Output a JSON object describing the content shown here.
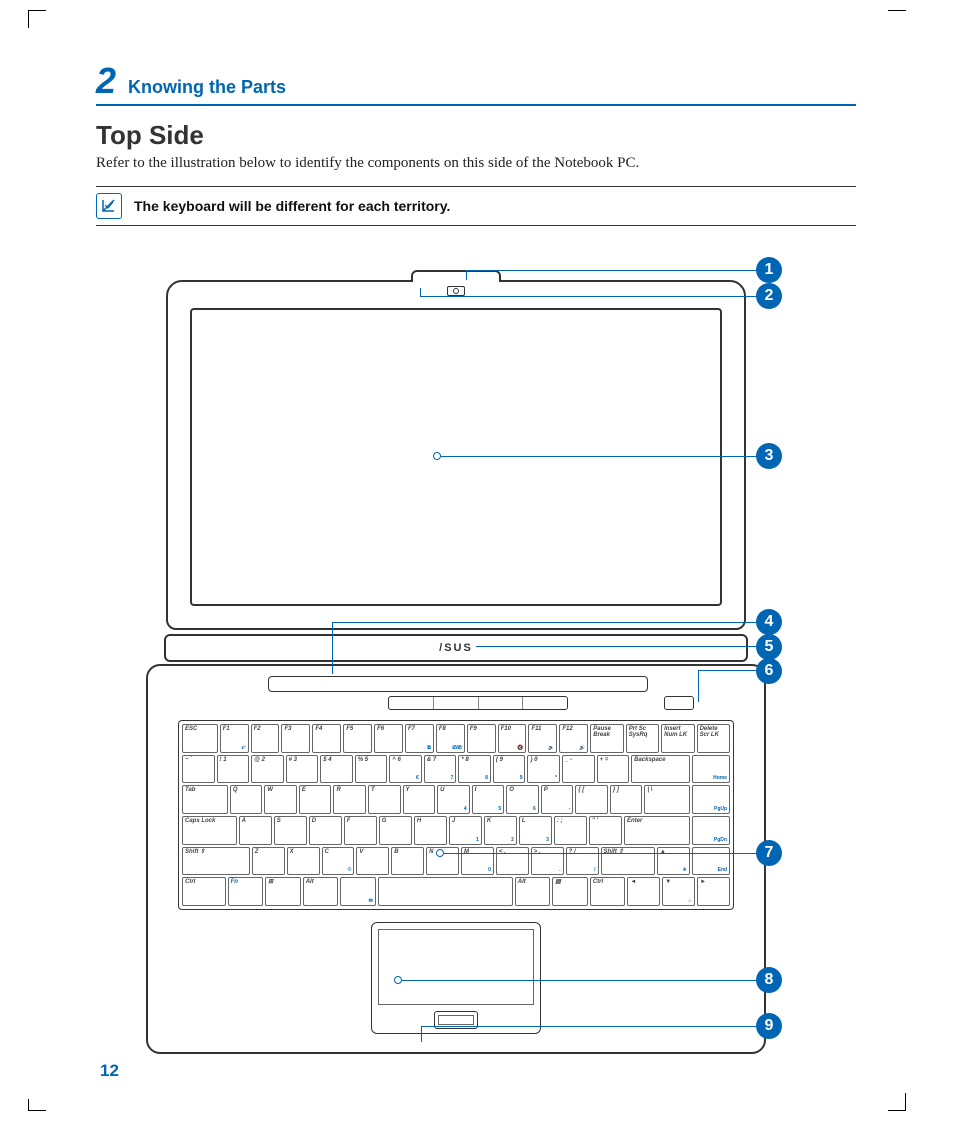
{
  "colors": {
    "accent": "#0066b3",
    "text": "#222222",
    "line": "#333333"
  },
  "section": {
    "number": "2",
    "title": "Knowing the Parts"
  },
  "heading": "Top Side",
  "intro": "Refer to the illustration below to identify the components on this side of the Notebook PC.",
  "note": "The keyboard will be different for each territory.",
  "logo": "/SUS",
  "page_number": "12",
  "callouts": [
    "1",
    "2",
    "3",
    "4",
    "5",
    "6",
    "7",
    "8",
    "9"
  ],
  "keyboard": {
    "row0": [
      {
        "t": "ESC",
        "w": 1.3
      },
      {
        "t": "F1",
        "s": "z²",
        "w": 1
      },
      {
        "t": "F2",
        "s": "",
        "w": 1
      },
      {
        "t": "F3",
        "s": "",
        "w": 1
      },
      {
        "t": "F4",
        "s": "",
        "w": 1
      },
      {
        "t": "F5",
        "s": "",
        "w": 1
      },
      {
        "t": "F6",
        "s": "",
        "w": 1
      },
      {
        "t": "F7",
        "s": "⧉",
        "w": 1
      },
      {
        "t": "F8",
        "s": "⎚/⎚",
        "w": 1
      },
      {
        "t": "F9",
        "s": "",
        "w": 1
      },
      {
        "t": "F10",
        "s": "🔇",
        "w": 1
      },
      {
        "t": "F11",
        "s": "🔉",
        "w": 1
      },
      {
        "t": "F12",
        "s": "🔊",
        "w": 1
      },
      {
        "t": "Pause\nBreak",
        "w": 1.2
      },
      {
        "t": "Prt Sc\nSysRq",
        "w": 1.2
      },
      {
        "t": "Insert\nNum LK",
        "s": "",
        "w": 1.2
      },
      {
        "t": "Delete\nScr LK",
        "s": "",
        "w": 1.2
      }
    ],
    "row1": [
      {
        "t": "~\n`",
        "s": "",
        "w": 1
      },
      {
        "t": "!\n1",
        "s": "",
        "w": 1
      },
      {
        "t": "@\n2",
        "s": "",
        "w": 1
      },
      {
        "t": "#\n3",
        "s": "",
        "w": 1
      },
      {
        "t": "$\n4",
        "s": "",
        "w": 1
      },
      {
        "t": "%\n5",
        "s": "",
        "w": 1
      },
      {
        "t": "^\n6",
        "s": "€",
        "w": 1
      },
      {
        "t": "&\n7",
        "s": "7",
        "w": 1
      },
      {
        "t": "*\n8",
        "s": "8",
        "w": 1
      },
      {
        "t": "(\n9",
        "s": "9",
        "w": 1
      },
      {
        "t": ")\n0",
        "s": "*",
        "w": 1
      },
      {
        "t": "_\n-",
        "s": "",
        "w": 1
      },
      {
        "t": "+\n=",
        "s": "",
        "w": 1
      },
      {
        "t": "Backspace",
        "s": "",
        "w": 2
      },
      {
        "t": "",
        "s": "Home",
        "w": 1.2
      }
    ],
    "row2": [
      {
        "t": "Tab",
        "s": "",
        "w": 1.5
      },
      {
        "t": "Q",
        "w": 1
      },
      {
        "t": "W",
        "w": 1
      },
      {
        "t": "E",
        "w": 1
      },
      {
        "t": "R",
        "w": 1
      },
      {
        "t": "T",
        "w": 1
      },
      {
        "t": "Y",
        "w": 1
      },
      {
        "t": "U",
        "s": "4",
        "w": 1
      },
      {
        "t": "I",
        "s": "5",
        "w": 1
      },
      {
        "t": "O",
        "s": "6",
        "w": 1
      },
      {
        "t": "P",
        "s": "-",
        "w": 1
      },
      {
        "t": "{\n[",
        "w": 1
      },
      {
        "t": "}\n]",
        "w": 1
      },
      {
        "t": "|\n\\",
        "w": 1.5
      },
      {
        "t": "",
        "s": "PgUp",
        "w": 1.2
      }
    ],
    "row3": [
      {
        "t": "Caps Lock",
        "w": 1.8
      },
      {
        "t": "A",
        "w": 1
      },
      {
        "t": "S",
        "w": 1
      },
      {
        "t": "D",
        "w": 1
      },
      {
        "t": "F",
        "w": 1
      },
      {
        "t": "G",
        "w": 1
      },
      {
        "t": "H",
        "w": 1
      },
      {
        "t": "J",
        "s": "1",
        "w": 1
      },
      {
        "t": "K",
        "s": "2",
        "w": 1
      },
      {
        "t": "L",
        "s": "3",
        "w": 1
      },
      {
        "t": ":\n;",
        "s": "",
        "w": 1
      },
      {
        "t": "\"\n'",
        "s": "",
        "w": 1
      },
      {
        "t": "Enter",
        "s": "",
        "w": 2.2
      },
      {
        "t": "",
        "s": "PgDn",
        "w": 1.2
      }
    ],
    "row4": [
      {
        "t": "Shift ⇧",
        "w": 2.3
      },
      {
        "t": "Z",
        "w": 1
      },
      {
        "t": "X",
        "w": 1
      },
      {
        "t": "C",
        "s": "©",
        "w": 1
      },
      {
        "t": "V",
        "w": 1
      },
      {
        "t": "B",
        "w": 1
      },
      {
        "t": "N",
        "w": 1
      },
      {
        "t": "M",
        "s": "0",
        "w": 1
      },
      {
        "t": "<\n,",
        "w": 1
      },
      {
        "t": ">\n.",
        "s": ".",
        "w": 1
      },
      {
        "t": "?\n/",
        "s": "/",
        "w": 1
      },
      {
        "t": "Shift ⇧",
        "w": 1.8
      },
      {
        "t": "▲",
        "s": "☀",
        "w": 1
      },
      {
        "t": "",
        "s": "End",
        "w": 1.2
      }
    ],
    "row5": [
      {
        "t": "Ctrl",
        "w": 1.4
      },
      {
        "t": "Fn",
        "s": "",
        "w": 1.1,
        "blue": true
      },
      {
        "t": "⊞",
        "w": 1.1
      },
      {
        "t": "Alt",
        "w": 1.1
      },
      {
        "t": "",
        "s": "✉",
        "w": 1.1
      },
      {
        "t": "",
        "w": 4.8
      },
      {
        "t": "Alt",
        "w": 1.1
      },
      {
        "t": "▤",
        "w": 1.1
      },
      {
        "t": "Ctrl",
        "w": 1.1
      },
      {
        "t": "◄",
        "s": "",
        "w": 1
      },
      {
        "t": "▼",
        "s": "☼",
        "w": 1
      },
      {
        "t": "►",
        "s": "",
        "w": 1
      }
    ]
  }
}
